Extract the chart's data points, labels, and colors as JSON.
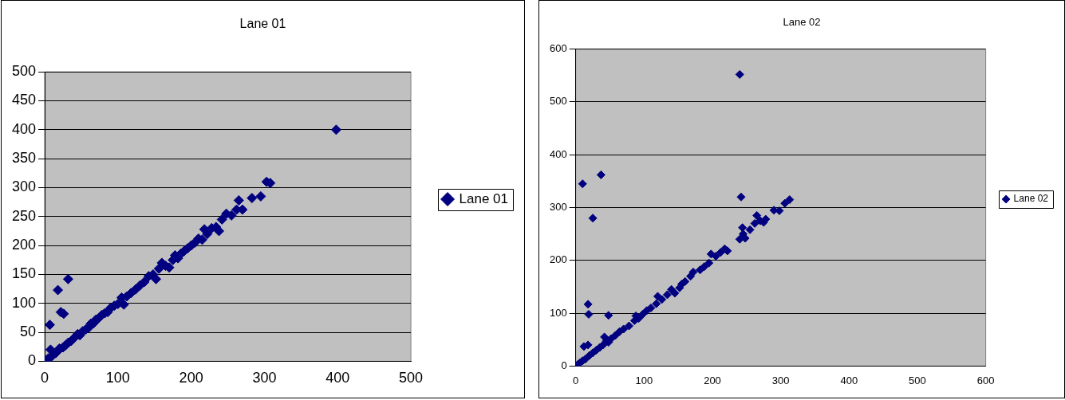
{
  "chart_data": [
    {
      "type": "scatter",
      "title": "Lane 01",
      "xlim": [
        0,
        500
      ],
      "ylim": [
        0,
        500
      ],
      "xticks": [
        0,
        100,
        200,
        300,
        400,
        500
      ],
      "yticks": [
        0,
        50,
        100,
        150,
        200,
        250,
        300,
        350,
        400,
        450,
        500
      ],
      "grid": "y",
      "legend": "right",
      "marker": "diamond",
      "series": [
        {
          "name": "Lane 01",
          "color": "#000080",
          "x": [
            0,
            3,
            5,
            8,
            10,
            15,
            18,
            20,
            25,
            28,
            32,
            36,
            40,
            45,
            48,
            52,
            56,
            60,
            63,
            67,
            70,
            74,
            78,
            82,
            86,
            90,
            95,
            100,
            105,
            108,
            112,
            118,
            124,
            130,
            136,
            142,
            148,
            152,
            156,
            160,
            165,
            170,
            175,
            178,
            182,
            186,
            190,
            195,
            200,
            205,
            210,
            215,
            218,
            222,
            228,
            234,
            238,
            242,
            248,
            255,
            262,
            265,
            270,
            283,
            295,
            303,
            308,
            7,
            18,
            22,
            26,
            32,
            398
          ],
          "values": [
            0,
            2,
            5,
            20,
            9,
            14,
            18,
            22,
            24,
            27,
            32,
            35,
            40,
            47,
            45,
            52,
            55,
            58,
            65,
            66,
            72,
            75,
            80,
            83,
            85,
            92,
            96,
            99,
            110,
            98,
            112,
            118,
            124,
            131,
            137,
            147,
            150,
            142,
            160,
            170,
            165,
            162,
            175,
            183,
            178,
            186,
            190,
            195,
            200,
            205,
            212,
            210,
            228,
            220,
            230,
            232,
            225,
            245,
            255,
            252,
            262,
            278,
            262,
            282,
            285,
            310,
            308,
            63,
            123,
            85,
            82,
            142,
            400
          ]
        }
      ]
    },
    {
      "type": "scatter",
      "title": "Lane 02",
      "xlim": [
        0,
        600
      ],
      "ylim": [
        0,
        600
      ],
      "xticks": [
        0,
        100,
        200,
        300,
        400,
        500,
        600
      ],
      "yticks": [
        0,
        100,
        200,
        300,
        400,
        500,
        600
      ],
      "grid": "y",
      "legend": "right",
      "marker": "diamond",
      "series": [
        {
          "name": "Lane 02",
          "color": "#000080",
          "x": [
            0,
            3,
            6,
            10,
            12,
            14,
            18,
            20,
            25,
            30,
            35,
            40,
            42,
            45,
            48,
            52,
            58,
            64,
            70,
            78,
            86,
            88,
            92,
            98,
            104,
            110,
            118,
            120,
            126,
            134,
            140,
            145,
            152,
            155,
            160,
            168,
            172,
            182,
            188,
            195,
            198,
            205,
            212,
            218,
            222,
            240,
            245,
            248,
            255,
            262,
            265,
            270,
            275,
            278,
            290,
            298,
            306,
            313,
            10,
            37,
            25,
            18,
            19,
            48,
            240,
            242,
            244
          ],
          "values": [
            0,
            3,
            6,
            10,
            37,
            13,
            40,
            20,
            25,
            30,
            35,
            40,
            55,
            48,
            45,
            52,
            58,
            65,
            70,
            76,
            86,
            95,
            90,
            98,
            105,
            110,
            118,
            132,
            126,
            135,
            145,
            138,
            148,
            155,
            160,
            170,
            178,
            182,
            188,
            195,
            212,
            208,
            215,
            222,
            218,
            240,
            250,
            242,
            258,
            270,
            285,
            275,
            272,
            278,
            295,
            294,
            308,
            315,
            345,
            362,
            280,
            117,
            98,
            96,
            552,
            320,
            262
          ]
        }
      ]
    }
  ]
}
